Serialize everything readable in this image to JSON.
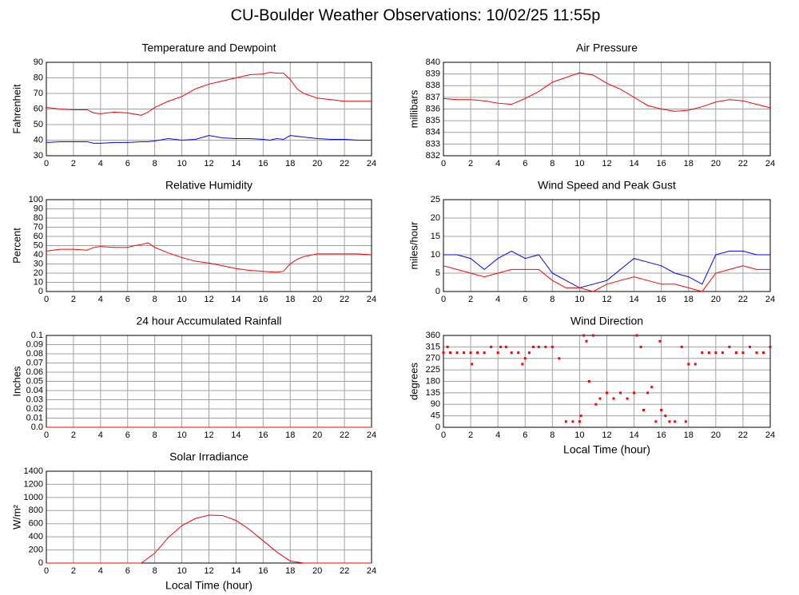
{
  "title": "CU-Boulder Weather Observations: 10/02/25 11:55p",
  "chart_data": [
    {
      "type": "line",
      "title": "Temperature and Dewpoint",
      "y_label": "Fahrenheit",
      "x": [
        0,
        1,
        2,
        3,
        3.5,
        4,
        5,
        6,
        7,
        7.5,
        8,
        9,
        10,
        11,
        12,
        13,
        14,
        15,
        16,
        16.5,
        17,
        17.5,
        18,
        18.5,
        19,
        20,
        21,
        22,
        23,
        24
      ],
      "series": [
        {
          "color": "#ff0000",
          "values": [
            61,
            60,
            59.5,
            59.5,
            57.5,
            57,
            58,
            57.5,
            56,
            58,
            61,
            65,
            68,
            73,
            76,
            78,
            80,
            82,
            82.5,
            83.5,
            83,
            83,
            79,
            73,
            70,
            67,
            66,
            65,
            65,
            65
          ]
        },
        {
          "color": "#0000ff",
          "values": [
            38.5,
            39,
            39,
            39,
            38,
            38,
            38.5,
            38.5,
            39,
            39,
            39.5,
            41,
            40,
            40.5,
            43,
            41.5,
            41,
            41,
            40.5,
            40,
            41,
            40.5,
            43,
            42.5,
            42,
            41,
            40.5,
            40.5,
            40,
            40
          ]
        }
      ],
      "xlim": [
        0,
        24
      ],
      "xticks": [
        0,
        2,
        4,
        6,
        8,
        10,
        12,
        14,
        16,
        18,
        20,
        22,
        24
      ],
      "ylim": [
        30,
        90
      ],
      "yticks": [
        30,
        40,
        50,
        60,
        70,
        80,
        90
      ],
      "grid": true
    },
    {
      "type": "line",
      "title": "Air Pressure",
      "y_label": "millibars",
      "x": [
        0,
        1,
        2,
        3,
        4,
        5,
        6,
        7,
        8,
        9,
        10,
        11,
        12,
        13,
        14,
        15,
        16,
        17,
        18,
        19,
        20,
        21,
        22,
        23,
        24
      ],
      "series": [
        {
          "color": "#ff0000",
          "values": [
            836.9,
            836.8,
            836.8,
            836.7,
            836.5,
            836.4,
            836.9,
            837.5,
            838.3,
            838.7,
            839.1,
            838.9,
            838.2,
            837.7,
            837.0,
            836.3,
            836.0,
            835.8,
            835.9,
            836.2,
            836.6,
            836.8,
            836.7,
            836.4,
            836.1
          ]
        }
      ],
      "xlim": [
        0,
        24
      ],
      "xticks": [
        0,
        2,
        4,
        6,
        8,
        10,
        12,
        14,
        16,
        18,
        20,
        22,
        24
      ],
      "ylim": [
        832,
        840
      ],
      "yticks": [
        832,
        833,
        834,
        835,
        836,
        837,
        838,
        839,
        840
      ],
      "grid": true
    },
    {
      "type": "line",
      "title": "Relative Humidity",
      "y_label": "Percent",
      "x": [
        0,
        1,
        2,
        3,
        3.5,
        4,
        5,
        6,
        6.5,
        7,
        7.5,
        8,
        9,
        10,
        11,
        12,
        13,
        14,
        15,
        16,
        17,
        17.5,
        18,
        18.5,
        19,
        20,
        21,
        22,
        23,
        24
      ],
      "series": [
        {
          "color": "#ff0000",
          "values": [
            44,
            46,
            46,
            45,
            48,
            49,
            48,
            48,
            50,
            51,
            53,
            48,
            42,
            37,
            33,
            31,
            28,
            25,
            23,
            22,
            21,
            22,
            30,
            35,
            38,
            41,
            41,
            41,
            41,
            40
          ]
        }
      ],
      "xlim": [
        0,
        24
      ],
      "xticks": [
        0,
        2,
        4,
        6,
        8,
        10,
        12,
        14,
        16,
        18,
        20,
        22,
        24
      ],
      "ylim": [
        0,
        100
      ],
      "yticks": [
        0,
        10,
        20,
        30,
        40,
        50,
        60,
        70,
        80,
        90,
        100
      ],
      "grid": true
    },
    {
      "type": "line",
      "title": "Wind Speed and Peak Gust",
      "y_label": "miles/hour",
      "x": [
        0,
        1,
        2,
        3,
        4,
        5,
        6,
        7,
        8,
        9,
        10,
        11,
        12,
        13,
        14,
        15,
        16,
        17,
        18,
        19,
        20,
        21,
        22,
        23,
        24
      ],
      "series": [
        {
          "color": "#0000ff",
          "values": [
            10,
            10,
            9,
            6,
            9,
            11,
            9,
            10,
            5,
            3,
            1,
            2,
            3,
            6,
            9,
            8,
            7,
            5,
            4,
            2,
            10,
            11,
            11,
            10,
            10
          ]
        },
        {
          "color": "#ff0000",
          "values": [
            7,
            6,
            5,
            4,
            5,
            6,
            6,
            6,
            3,
            1,
            1,
            0,
            2,
            3,
            4,
            3,
            2,
            2,
            1,
            0,
            5,
            6,
            7,
            6,
            6
          ]
        }
      ],
      "xlim": [
        0,
        24
      ],
      "xticks": [
        0,
        2,
        4,
        6,
        8,
        10,
        12,
        14,
        16,
        18,
        20,
        22,
        24
      ],
      "ylim": [
        0,
        25
      ],
      "yticks": [
        0,
        5,
        10,
        15,
        20,
        25
      ],
      "grid": true
    },
    {
      "type": "line",
      "title": "24 hour Accumulated Rainfall",
      "y_label": "Inches",
      "x": [
        0,
        24
      ],
      "series": [
        {
          "color": "#ff0000",
          "values": [
            0,
            0
          ]
        }
      ],
      "xlim": [
        0,
        24
      ],
      "xticks": [
        0,
        2,
        4,
        6,
        8,
        10,
        12,
        14,
        16,
        18,
        20,
        22,
        24
      ],
      "ylim": [
        0,
        0.1
      ],
      "yticks": [
        {
          "value": 0,
          "label": "0.0"
        },
        0.01,
        0.02,
        0.03,
        0.04,
        0.05,
        0.06,
        0.07,
        0.08,
        0.09,
        0.1
      ],
      "grid": true
    },
    {
      "type": "scatter",
      "title": "Wind Direction",
      "y_label": "degrees",
      "x_label": "Local Time (hour)",
      "x": [
        0,
        0.3,
        0.5,
        1,
        1.5,
        2,
        2.1,
        2.5,
        3,
        3.5,
        4,
        4.2,
        4.6,
        5,
        5.5,
        5.8,
        6,
        6.3,
        6.6,
        7,
        7.5,
        8,
        8.5,
        9,
        9.5,
        10,
        10.1,
        10.3,
        10.5,
        10.7,
        11,
        11.2,
        11.5,
        12,
        12.5,
        13,
        13.5,
        14,
        14.2,
        14.5,
        14.7,
        15,
        15.3,
        15.6,
        15.9,
        16,
        16.3,
        16.6,
        17,
        17.5,
        17.8,
        18,
        18.5,
        19,
        19.5,
        20,
        20.5,
        21,
        21.5,
        22,
        22.5,
        23,
        23.5,
        24
      ],
      "series": [
        {
          "color": "#ff0000",
          "values": [
            292.5,
            315,
            292.5,
            292.5,
            292.5,
            292.5,
            247.5,
            292.5,
            292.5,
            315,
            292.5,
            315,
            315,
            292.5,
            292.5,
            247.5,
            270,
            292.5,
            315,
            315,
            315,
            315,
            270,
            22.5,
            22.5,
            22.5,
            45,
            360,
            337.5,
            180,
            360,
            90,
            112.5,
            135,
            112.5,
            135,
            112.5,
            135,
            360,
            315,
            67.5,
            135,
            157.5,
            22.5,
            337.5,
            67.5,
            45,
            22.5,
            22.5,
            315,
            22.5,
            247.5,
            247.5,
            292.5,
            292.5,
            292.5,
            292.5,
            315,
            292.5,
            292.5,
            315,
            292.5,
            292.5,
            315
          ]
        }
      ],
      "xlim": [
        0,
        24
      ],
      "xticks": [
        0,
        2,
        4,
        6,
        8,
        10,
        12,
        14,
        16,
        18,
        20,
        22,
        24
      ],
      "ylim": [
        0,
        360
      ],
      "yticks": [
        0,
        45,
        90,
        135,
        180,
        225,
        270,
        315,
        360
      ],
      "grid": true
    },
    {
      "type": "line",
      "title": "Solar Irradiance",
      "y_label": "W/m²",
      "x_label": "Local Time (hour)",
      "x": [
        0,
        1,
        2,
        3,
        4,
        5,
        6,
        7,
        8,
        9,
        10,
        11,
        12,
        13,
        14,
        15,
        16,
        17,
        18,
        19,
        20,
        21,
        22,
        23,
        24
      ],
      "series": [
        {
          "color": "#ff0000",
          "values": [
            0,
            0,
            0,
            0,
            0,
            0,
            0,
            0,
            150,
            390,
            570,
            680,
            730,
            725,
            650,
            510,
            340,
            170,
            30,
            0,
            0,
            0,
            0,
            0,
            0
          ]
        }
      ],
      "xlim": [
        0,
        24
      ],
      "xticks": [
        0,
        2,
        4,
        6,
        8,
        10,
        12,
        14,
        16,
        18,
        20,
        22,
        24
      ],
      "ylim": [
        0,
        1400
      ],
      "yticks": [
        0,
        200,
        400,
        600,
        800,
        1000,
        1200,
        1400
      ],
      "grid": true
    }
  ]
}
